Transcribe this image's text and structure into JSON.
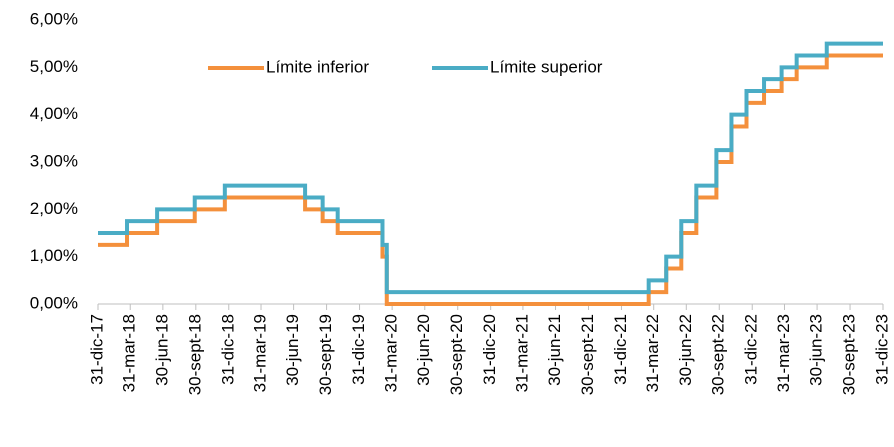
{
  "chart_data": {
    "type": "step-line",
    "x": [
      "2017-12-31",
      "2018-03-22",
      "2018-06-14",
      "2018-09-27",
      "2018-12-20",
      "2019-08-01",
      "2019-09-19",
      "2019-10-31",
      "2020-03-04",
      "2020-03-16",
      "2022-03-17",
      "2022-05-05",
      "2022-06-16",
      "2022-07-28",
      "2022-09-22",
      "2022-11-03",
      "2022-12-15",
      "2023-02-02",
      "2023-03-23",
      "2023-05-04",
      "2023-07-27",
      "2023-12-31"
    ],
    "series": [
      {
        "name": "Límite inferior",
        "color": "#f4903c",
        "values": [
          1.25,
          1.5,
          1.75,
          2.0,
          2.25,
          2.0,
          1.75,
          1.5,
          1.0,
          0.0,
          0.25,
          0.75,
          1.5,
          2.25,
          3.0,
          3.75,
          4.25,
          4.5,
          4.75,
          5.0,
          5.25,
          5.25
        ]
      },
      {
        "name": "Límite superior",
        "color": "#4aacc5",
        "values": [
          1.5,
          1.75,
          2.0,
          2.25,
          2.5,
          2.25,
          2.0,
          1.75,
          1.25,
          0.25,
          0.5,
          1.0,
          1.75,
          2.5,
          3.25,
          4.0,
          4.5,
          4.75,
          5.0,
          5.25,
          5.5,
          5.5
        ]
      }
    ],
    "xlim": [
      "2017-12-31",
      "2023-12-31"
    ],
    "xticks": [
      {
        "value": "2017-12-31",
        "label": "31-dic-17"
      },
      {
        "value": "2018-03-31",
        "label": "31-mar-18"
      },
      {
        "value": "2018-06-30",
        "label": "30-jun-18"
      },
      {
        "value": "2018-09-30",
        "label": "30-sept-18"
      },
      {
        "value": "2018-12-31",
        "label": "31-dic-18"
      },
      {
        "value": "2019-03-31",
        "label": "31-mar-19"
      },
      {
        "value": "2019-06-30",
        "label": "30-jun-19"
      },
      {
        "value": "2019-09-30",
        "label": "30-sept-19"
      },
      {
        "value": "2019-12-31",
        "label": "31-dic-19"
      },
      {
        "value": "2020-03-31",
        "label": "31-mar-20"
      },
      {
        "value": "2020-06-30",
        "label": "30-jun-20"
      },
      {
        "value": "2020-09-30",
        "label": "30-sept-20"
      },
      {
        "value": "2020-12-31",
        "label": "31-dic-20"
      },
      {
        "value": "2021-03-31",
        "label": "31-mar-21"
      },
      {
        "value": "2021-06-30",
        "label": "30-jun-21"
      },
      {
        "value": "2021-09-30",
        "label": "30-sept-21"
      },
      {
        "value": "2021-12-31",
        "label": "31-dic-21"
      },
      {
        "value": "2022-03-31",
        "label": "31-mar-22"
      },
      {
        "value": "2022-06-30",
        "label": "30-jun-22"
      },
      {
        "value": "2022-09-30",
        "label": "30-sept-22"
      },
      {
        "value": "2022-12-31",
        "label": "31-dic-22"
      },
      {
        "value": "2023-03-31",
        "label": "31-mar-23"
      },
      {
        "value": "2023-06-30",
        "label": "30-jun-23"
      },
      {
        "value": "2023-09-30",
        "label": "30-sept-23"
      },
      {
        "value": "2023-12-31",
        "label": "31-dic-23"
      }
    ],
    "ylim": [
      0,
      6
    ],
    "yticks": [
      {
        "value": 0,
        "label": "0,00%"
      },
      {
        "value": 1,
        "label": "1,00%"
      },
      {
        "value": 2,
        "label": "2,00%"
      },
      {
        "value": 3,
        "label": "3,00%"
      },
      {
        "value": 4,
        "label": "4,00%"
      },
      {
        "value": 5,
        "label": "5,00%"
      },
      {
        "value": 6,
        "label": "6,00%"
      }
    ],
    "legend": "top"
  }
}
